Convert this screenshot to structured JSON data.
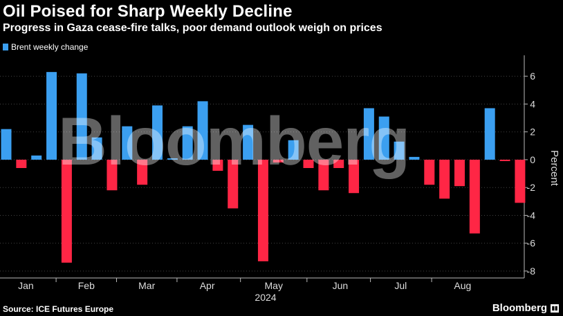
{
  "header": {
    "title": "Oil Poised for Sharp Weekly Decline",
    "subtitle": "Progress in Gaza cease-fire talks, poor demand outlook weigh on prices"
  },
  "legend": {
    "label": "Brent weekly change"
  },
  "footer": {
    "source": "Source: ICE Futures Europe",
    "brand": "Bloomberg"
  },
  "watermark": "Bloomberg",
  "colors": {
    "positive": "#3b9ff0",
    "negative": "#ff2645",
    "background": "#000000",
    "grid": "#444444"
  },
  "chart_data": {
    "type": "bar",
    "title": "Oil Poised for Sharp Weekly Decline",
    "subtitle": "Progress in Gaza cease-fire talks, poor demand outlook weigh on prices",
    "series": [
      {
        "name": "Brent weekly change"
      }
    ],
    "xlabel": "2024",
    "ylabel": "Percent",
    "ylim": [
      -8.5,
      7.5
    ],
    "yticks": [
      6,
      4,
      2,
      0,
      -2,
      -4,
      -6,
      -8
    ],
    "month_labels": [
      "Jan",
      "Feb",
      "Mar",
      "Apr",
      "May",
      "Jun",
      "Jul",
      "Aug"
    ],
    "month_label_weeks": [
      1.3,
      5.3,
      9.3,
      13.3,
      17.7,
      22.1,
      26.1,
      30.2
    ],
    "values": [
      2.2,
      -0.6,
      0.3,
      6.3,
      -7.4,
      6.2,
      1.6,
      -2.2,
      2.4,
      -1.8,
      3.9,
      0.1,
      2.4,
      4.2,
      -0.8,
      -3.5,
      2.5,
      -7.3,
      -0.2,
      1.4,
      -0.6,
      -2.2,
      -0.6,
      -2.4,
      3.7,
      3.1,
      1.3,
      0.2,
      -1.8,
      -2.8,
      -1.9,
      -5.3,
      3.7,
      -0.1,
      -3.1
    ],
    "grid": true
  }
}
